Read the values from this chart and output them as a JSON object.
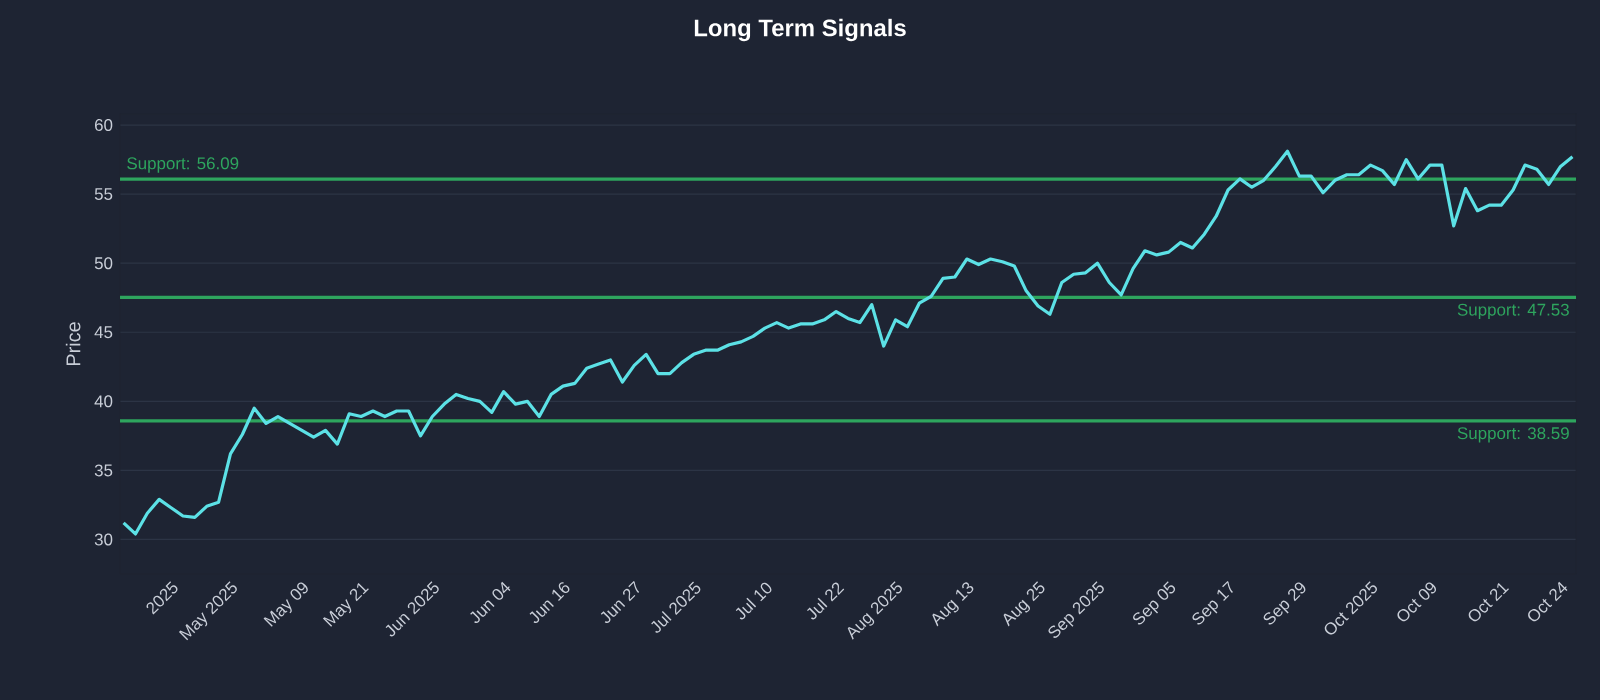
{
  "chart_data": {
    "type": "line",
    "title": "Long Term Signals",
    "ylabel": "Price",
    "categories": [
      null,
      null,
      null,
      null,
      "2025",
      null,
      null,
      null,
      null,
      "May 2025",
      null,
      null,
      null,
      null,
      null,
      "May 09",
      null,
      null,
      null,
      null,
      "May 21",
      null,
      null,
      null,
      null,
      null,
      "Jun 2025",
      null,
      null,
      null,
      null,
      null,
      "Jun 04",
      null,
      null,
      null,
      null,
      "Jun 16",
      null,
      null,
      null,
      null,
      null,
      "Jun 27",
      null,
      null,
      null,
      null,
      "Jul 2025",
      null,
      null,
      null,
      null,
      null,
      "Jul 10",
      null,
      null,
      null,
      null,
      null,
      "Jul 22",
      null,
      null,
      null,
      null,
      "Aug 2025",
      null,
      null,
      null,
      null,
      null,
      "Aug 13",
      null,
      null,
      null,
      null,
      null,
      "Aug 25",
      null,
      null,
      null,
      null,
      "Sep 2025",
      null,
      null,
      null,
      null,
      null,
      "Sep 05",
      null,
      null,
      null,
      null,
      "Sep 17",
      null,
      null,
      null,
      null,
      null,
      "Sep 29",
      null,
      null,
      null,
      null,
      null,
      "Oct 2025",
      null,
      null,
      null,
      null,
      "Oct 09",
      null,
      null,
      null,
      null,
      null,
      "Oct 21",
      null,
      null,
      null,
      null,
      "Oct 24",
      null
    ],
    "values": [
      31.2,
      30.4,
      31.9,
      32.9,
      32.3,
      31.7,
      31.6,
      32.4,
      32.7,
      36.2,
      37.6,
      39.5,
      38.4,
      38.9,
      38.4,
      37.9,
      37.4,
      37.9,
      36.9,
      39.1,
      38.9,
      39.3,
      38.9,
      39.3,
      39.3,
      37.5,
      38.9,
      39.8,
      40.5,
      40.2,
      40.0,
      39.2,
      40.7,
      39.8,
      40.0,
      38.9,
      40.5,
      41.1,
      41.3,
      42.4,
      42.7,
      43.0,
      41.4,
      42.6,
      43.4,
      42.0,
      42.0,
      42.8,
      43.4,
      43.7,
      43.7,
      44.1,
      44.3,
      44.7,
      45.3,
      45.7,
      45.3,
      45.6,
      45.6,
      45.9,
      46.5,
      46.0,
      45.7,
      47.0,
      44.0,
      45.9,
      45.4,
      47.1,
      47.6,
      48.9,
      49.0,
      50.3,
      49.9,
      50.3,
      50.1,
      49.8,
      48.0,
      46.9,
      46.3,
      48.6,
      49.2,
      49.3,
      50.0,
      48.6,
      47.7,
      49.6,
      50.9,
      50.6,
      50.8,
      51.5,
      51.1,
      52.1,
      53.4,
      55.3,
      56.1,
      55.5,
      56.0,
      57.0,
      58.1,
      56.3,
      56.3,
      55.1,
      56.0,
      56.4,
      56.4,
      57.1,
      56.7,
      55.7,
      57.5,
      56.1,
      57.1,
      57.1,
      52.7,
      55.4,
      53.8,
      54.2,
      54.2,
      55.3,
      57.1,
      56.8,
      55.7,
      57.0,
      57.7
    ],
    "color": "#5ce1e6",
    "ylim": [
      27.5,
      60.8
    ],
    "yticks": [
      30,
      35,
      40,
      45,
      50,
      55,
      60
    ],
    "grid": "y",
    "ref_lines": [
      {
        "axis": "y",
        "value": 56.09,
        "label": "Support: 56.09",
        "color": "#2ea55e"
      },
      {
        "axis": "y",
        "value": 47.53,
        "label": "Support: 47.53",
        "color": "#2ea55e"
      },
      {
        "axis": "y",
        "value": 38.59,
        "label": "Support: 38.59",
        "color": "#2ea55e"
      }
    ]
  }
}
